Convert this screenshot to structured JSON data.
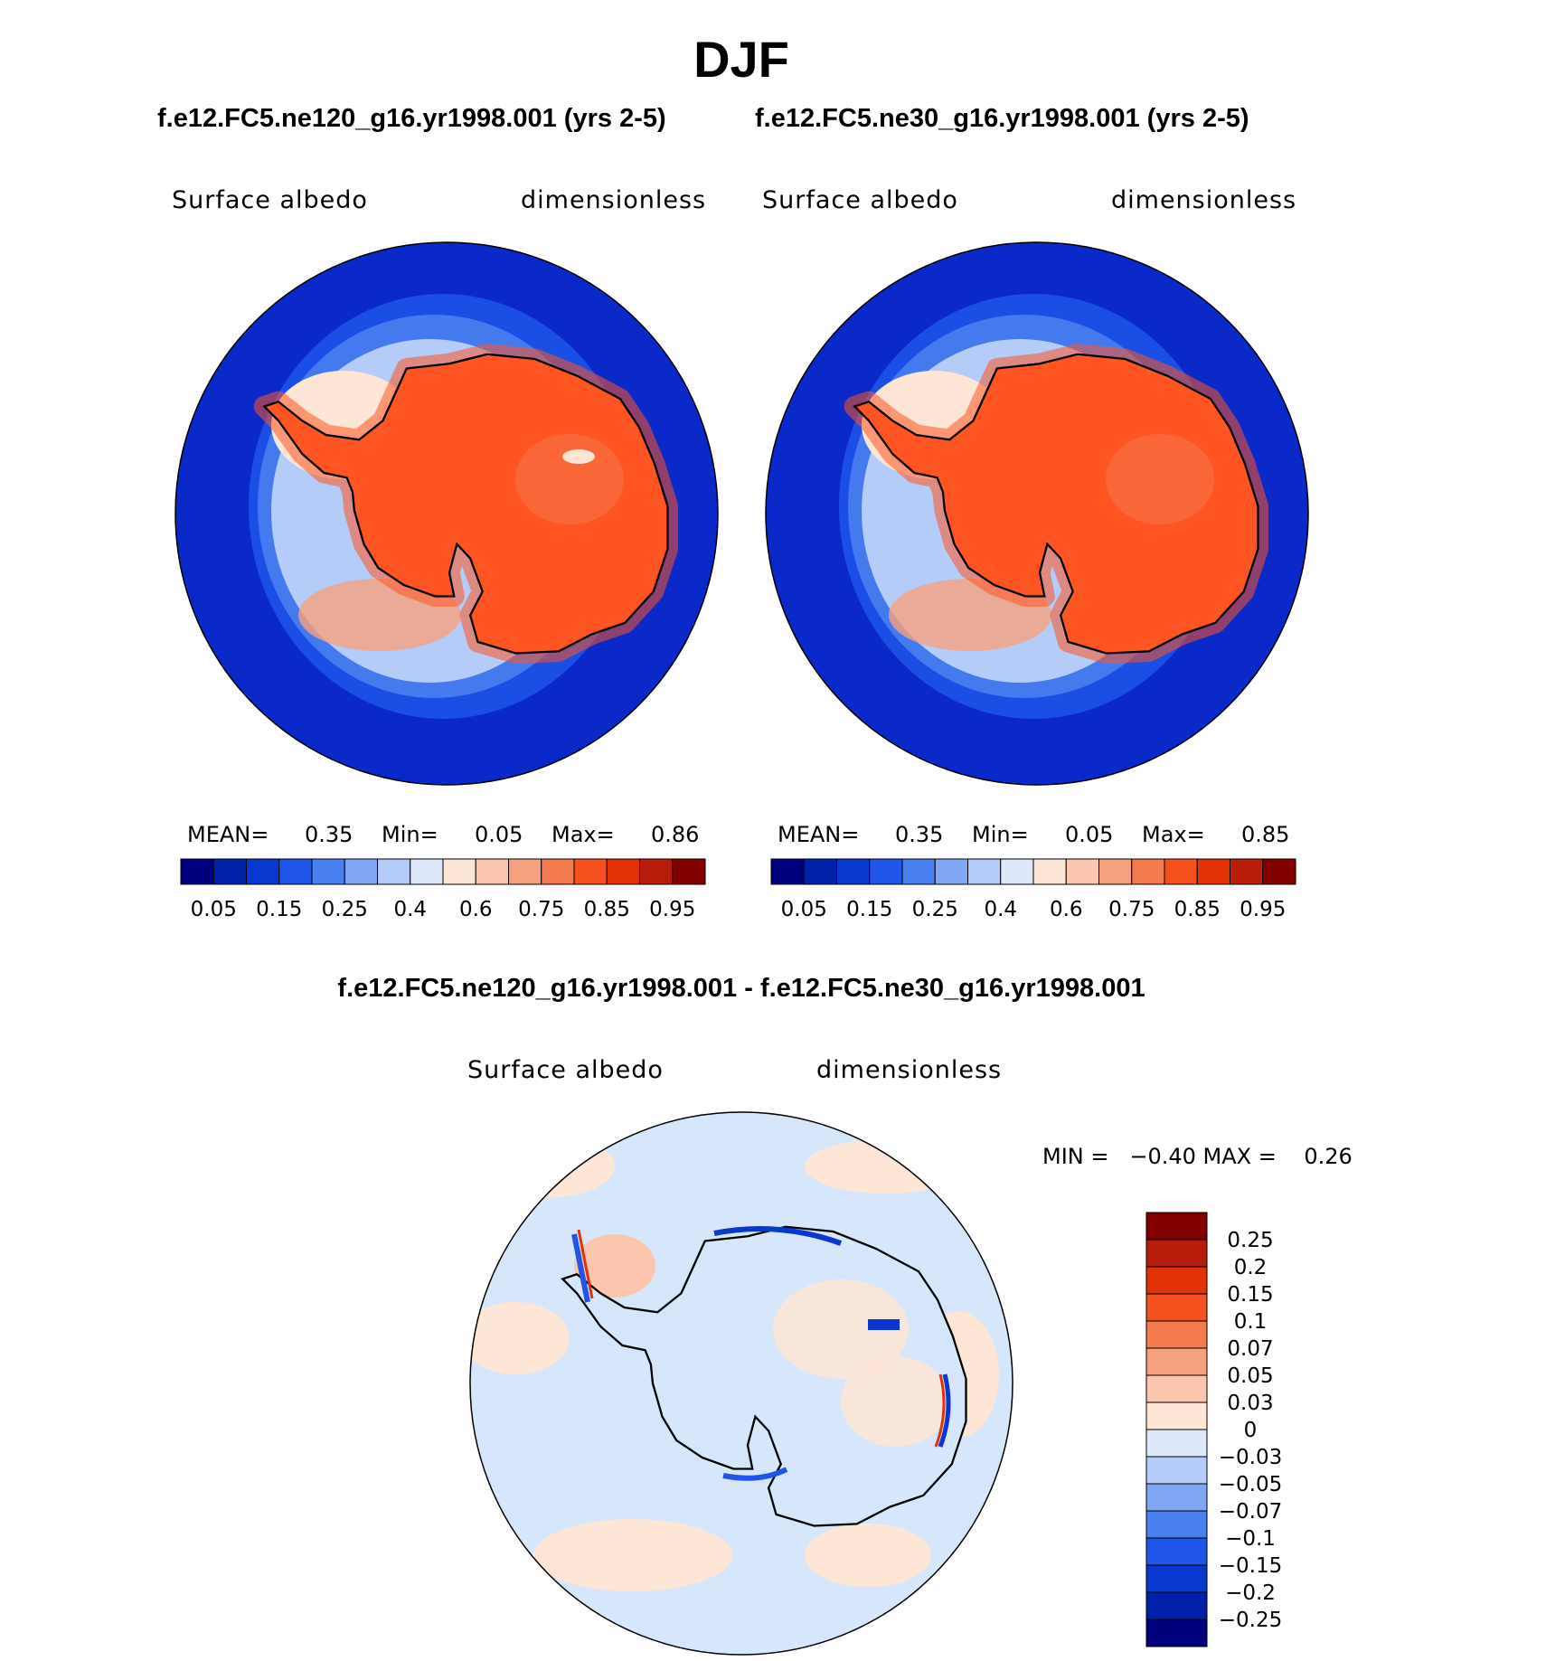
{
  "title": "DJF",
  "panels": [
    {
      "case": "f.e12.FC5.ne120_g16.yr1998.001 (yrs 2-5)",
      "variable": "Surface albedo",
      "units": "dimensionless",
      "stats": {
        "mean_label": "MEAN=",
        "mean": "0.35",
        "min_label": "Min=",
        "min": "0.05",
        "max_label": "Max=",
        "max": "0.86"
      }
    },
    {
      "case": "f.e12.FC5.ne30_g16.yr1998.001 (yrs 2-5)",
      "variable": "Surface albedo",
      "units": "dimensionless",
      "stats": {
        "mean_label": "MEAN=",
        "mean": "0.35",
        "min_label": "Min=",
        "min": "0.05",
        "max_label": "Max=",
        "max": "0.85"
      }
    }
  ],
  "diff_panel": {
    "title": "f.e12.FC5.ne120_g16.yr1998.001 - f.e12.FC5.ne30_g16.yr1998.001",
    "variable": "Surface albedo",
    "units": "dimensionless",
    "stats": "MIN =   −0.40 MAX =    0.26"
  },
  "colors": {
    "ocean_low": "#0b28c8",
    "land_high": "#ff5522",
    "coast": "#000000",
    "diff_bg": "#d6e6fb"
  },
  "chart_data": [
    {
      "type": "heatmap",
      "projection": "south polar stereographic",
      "title": "f.e12.FC5.ne120_g16.yr1998.001 (yrs 2-5)",
      "variable": "Surface albedo",
      "units": "dimensionless",
      "mean": 0.35,
      "min": 0.05,
      "max": 0.86,
      "colorbar_levels": [
        0.05,
        0.1,
        0.15,
        0.2,
        0.25,
        0.3,
        0.4,
        0.5,
        0.6,
        0.7,
        0.75,
        0.8,
        0.85,
        0.9,
        0.95
      ],
      "colorbar_labels": [
        "0.05",
        "0.15",
        "0.25",
        "0.4",
        "0.6",
        "0.75",
        "0.85",
        "0.95"
      ],
      "colorbar_colors": [
        "#00007f",
        "#0020a8",
        "#0838d0",
        "#1f55ea",
        "#4a7ff0",
        "#80a6f5",
        "#b5cbf8",
        "#dde8fb",
        "#fde6d6",
        "#fbc6ad",
        "#f6a17f",
        "#f47a4f",
        "#f4511f",
        "#e13208",
        "#b81d0c",
        "#800000"
      ]
    },
    {
      "type": "heatmap",
      "projection": "south polar stereographic",
      "title": "f.e12.FC5.ne30_g16.yr1998.001 (yrs 2-5)",
      "variable": "Surface albedo",
      "units": "dimensionless",
      "mean": 0.35,
      "min": 0.05,
      "max": 0.85,
      "colorbar_levels": [
        0.05,
        0.1,
        0.15,
        0.2,
        0.25,
        0.3,
        0.4,
        0.5,
        0.6,
        0.7,
        0.75,
        0.8,
        0.85,
        0.9,
        0.95
      ],
      "colorbar_labels": [
        "0.05",
        "0.15",
        "0.25",
        "0.4",
        "0.6",
        "0.75",
        "0.85",
        "0.95"
      ],
      "colorbar_colors": [
        "#00007f",
        "#0020a8",
        "#0838d0",
        "#1f55ea",
        "#4a7ff0",
        "#80a6f5",
        "#b5cbf8",
        "#dde8fb",
        "#fde6d6",
        "#fbc6ad",
        "#f6a17f",
        "#f47a4f",
        "#f4511f",
        "#e13208",
        "#b81d0c",
        "#800000"
      ]
    },
    {
      "type": "heatmap",
      "projection": "south polar stereographic",
      "title": "f.e12.FC5.ne120_g16.yr1998.001 - f.e12.FC5.ne30_g16.yr1998.001",
      "variable": "Surface albedo",
      "units": "dimensionless",
      "min": -0.4,
      "max": 0.26,
      "colorbar_labels": [
        "0.25",
        "0.2",
        "0.15",
        "0.1",
        "0.07",
        "0.05",
        "0.03",
        "0",
        "−0.03",
        "−0.05",
        "−0.07",
        "−0.1",
        "−0.15",
        "−0.2",
        "−0.25"
      ],
      "colorbar_colors": [
        "#800000",
        "#b81d0c",
        "#e13208",
        "#f4511f",
        "#f47a4f",
        "#f6a17f",
        "#fbc6ad",
        "#fde6d6",
        "#dde8fb",
        "#b5cbf8",
        "#80a6f5",
        "#4a7ff0",
        "#1f55ea",
        "#0838d0",
        "#0020a8",
        "#00007f"
      ]
    }
  ]
}
